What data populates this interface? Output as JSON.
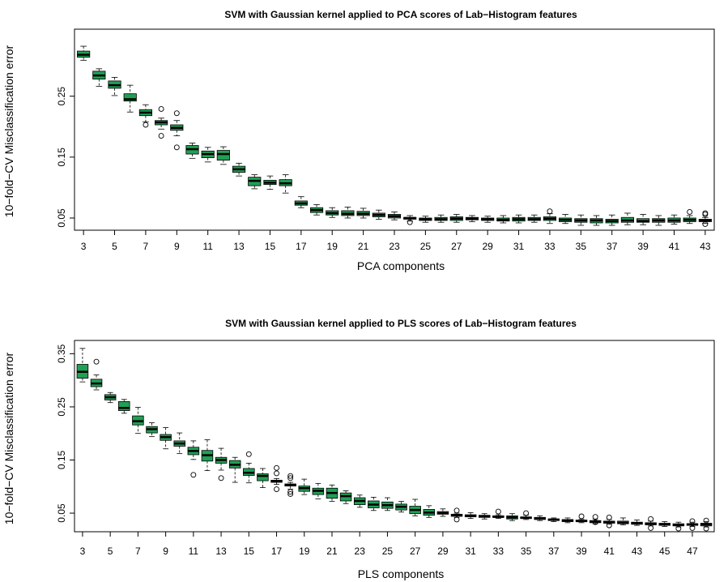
{
  "chart_data": [
    {
      "type": "box",
      "title": "SVM with Gaussian kernel applied to PCA scores of Lab−Histogram features",
      "xlabel": "PCA components",
      "ylabel": "10−fold−CV Misclassification error",
      "x_tick_labels": [
        "3",
        "5",
        "7",
        "9",
        "11",
        "13",
        "15",
        "17",
        "19",
        "21",
        "23",
        "25",
        "27",
        "29",
        "31",
        "33",
        "35",
        "37",
        "39",
        "41",
        "43"
      ],
      "y_tick_labels": [
        "0.05",
        "0.15",
        "0.25"
      ],
      "y_ticks": [
        0.05,
        0.15,
        0.25
      ],
      "ylim": [
        0.03,
        0.36
      ],
      "box_color": "#1fa055",
      "boxes": [
        {
          "x": 3,
          "min": 0.309,
          "q1": 0.314,
          "median": 0.318,
          "q3": 0.324,
          "max": 0.332,
          "outliers": []
        },
        {
          "x": 4,
          "min": 0.266,
          "q1": 0.278,
          "median": 0.284,
          "q3": 0.291,
          "max": 0.295,
          "outliers": []
        },
        {
          "x": 5,
          "min": 0.251,
          "q1": 0.263,
          "median": 0.268,
          "q3": 0.275,
          "max": 0.281,
          "outliers": []
        },
        {
          "x": 6,
          "min": 0.224,
          "q1": 0.242,
          "median": 0.245,
          "q3": 0.254,
          "max": 0.268,
          "outliers": []
        },
        {
          "x": 7,
          "min": 0.208,
          "q1": 0.218,
          "median": 0.223,
          "q3": 0.228,
          "max": 0.236,
          "outliers": [
            0.203
          ]
        },
        {
          "x": 8,
          "min": 0.196,
          "q1": 0.203,
          "median": 0.207,
          "q3": 0.21,
          "max": 0.214,
          "outliers": [
            0.229,
            0.185
          ]
        },
        {
          "x": 9,
          "min": 0.185,
          "q1": 0.194,
          "median": 0.198,
          "q3": 0.203,
          "max": 0.21,
          "outliers": [
            0.222,
            0.166
          ]
        },
        {
          "x": 10,
          "min": 0.148,
          "q1": 0.155,
          "median": 0.163,
          "q3": 0.169,
          "max": 0.173,
          "outliers": []
        },
        {
          "x": 11,
          "min": 0.142,
          "q1": 0.149,
          "median": 0.155,
          "q3": 0.16,
          "max": 0.166,
          "outliers": []
        },
        {
          "x": 12,
          "min": 0.138,
          "q1": 0.145,
          "median": 0.155,
          "q3": 0.161,
          "max": 0.167,
          "outliers": []
        },
        {
          "x": 13,
          "min": 0.119,
          "q1": 0.125,
          "median": 0.13,
          "q3": 0.135,
          "max": 0.14,
          "outliers": []
        },
        {
          "x": 14,
          "min": 0.098,
          "q1": 0.103,
          "median": 0.111,
          "q3": 0.117,
          "max": 0.121,
          "outliers": []
        },
        {
          "x": 15,
          "min": 0.097,
          "q1": 0.105,
          "median": 0.108,
          "q3": 0.112,
          "max": 0.119,
          "outliers": []
        },
        {
          "x": 16,
          "min": 0.091,
          "q1": 0.103,
          "median": 0.107,
          "q3": 0.113,
          "max": 0.121,
          "outliers": []
        },
        {
          "x": 17,
          "min": 0.067,
          "q1": 0.071,
          "median": 0.074,
          "q3": 0.078,
          "max": 0.085,
          "outliers": []
        },
        {
          "x": 18,
          "min": 0.055,
          "q1": 0.059,
          "median": 0.063,
          "q3": 0.067,
          "max": 0.072,
          "outliers": []
        },
        {
          "x": 19,
          "min": 0.051,
          "q1": 0.055,
          "median": 0.058,
          "q3": 0.062,
          "max": 0.067,
          "outliers": []
        },
        {
          "x": 20,
          "min": 0.05,
          "q1": 0.054,
          "median": 0.057,
          "q3": 0.062,
          "max": 0.068,
          "outliers": []
        },
        {
          "x": 21,
          "min": 0.05,
          "q1": 0.054,
          "median": 0.057,
          "q3": 0.061,
          "max": 0.066,
          "outliers": []
        },
        {
          "x": 22,
          "min": 0.048,
          "q1": 0.052,
          "median": 0.055,
          "q3": 0.058,
          "max": 0.063,
          "outliers": []
        },
        {
          "x": 23,
          "min": 0.047,
          "q1": 0.05,
          "median": 0.053,
          "q3": 0.056,
          "max": 0.06,
          "outliers": []
        },
        {
          "x": 24,
          "min": 0.045,
          "q1": 0.048,
          "median": 0.05,
          "q3": 0.051,
          "max": 0.054,
          "outliers": [
            0.043
          ]
        },
        {
          "x": 25,
          "min": 0.043,
          "q1": 0.046,
          "median": 0.048,
          "q3": 0.05,
          "max": 0.053,
          "outliers": []
        },
        {
          "x": 26,
          "min": 0.043,
          "q1": 0.046,
          "median": 0.048,
          "q3": 0.051,
          "max": 0.055,
          "outliers": []
        },
        {
          "x": 27,
          "min": 0.043,
          "q1": 0.046,
          "median": 0.049,
          "q3": 0.052,
          "max": 0.056,
          "outliers": []
        },
        {
          "x": 28,
          "min": 0.044,
          "q1": 0.047,
          "median": 0.049,
          "q3": 0.051,
          "max": 0.054,
          "outliers": []
        },
        {
          "x": 29,
          "min": 0.043,
          "q1": 0.046,
          "median": 0.048,
          "q3": 0.05,
          "max": 0.053,
          "outliers": []
        },
        {
          "x": 30,
          "min": 0.042,
          "q1": 0.045,
          "median": 0.047,
          "q3": 0.05,
          "max": 0.054,
          "outliers": []
        },
        {
          "x": 31,
          "min": 0.042,
          "q1": 0.045,
          "median": 0.048,
          "q3": 0.051,
          "max": 0.055,
          "outliers": []
        },
        {
          "x": 32,
          "min": 0.043,
          "q1": 0.046,
          "median": 0.048,
          "q3": 0.051,
          "max": 0.055,
          "outliers": []
        },
        {
          "x": 33,
          "min": 0.041,
          "q1": 0.046,
          "median": 0.049,
          "q3": 0.052,
          "max": 0.057,
          "outliers": [
            0.061
          ]
        },
        {
          "x": 34,
          "min": 0.041,
          "q1": 0.044,
          "median": 0.047,
          "q3": 0.05,
          "max": 0.056,
          "outliers": []
        },
        {
          "x": 35,
          "min": 0.038,
          "q1": 0.043,
          "median": 0.046,
          "q3": 0.049,
          "max": 0.055,
          "outliers": []
        },
        {
          "x": 36,
          "min": 0.038,
          "q1": 0.042,
          "median": 0.046,
          "q3": 0.049,
          "max": 0.054,
          "outliers": []
        },
        {
          "x": 37,
          "min": 0.038,
          "q1": 0.042,
          "median": 0.045,
          "q3": 0.048,
          "max": 0.055,
          "outliers": []
        },
        {
          "x": 38,
          "min": 0.039,
          "q1": 0.043,
          "median": 0.046,
          "q3": 0.051,
          "max": 0.058,
          "outliers": []
        },
        {
          "x": 39,
          "min": 0.039,
          "q1": 0.043,
          "median": 0.045,
          "q3": 0.049,
          "max": 0.056,
          "outliers": []
        },
        {
          "x": 40,
          "min": 0.038,
          "q1": 0.043,
          "median": 0.046,
          "q3": 0.049,
          "max": 0.054,
          "outliers": []
        },
        {
          "x": 41,
          "min": 0.04,
          "q1": 0.043,
          "median": 0.046,
          "q3": 0.05,
          "max": 0.055,
          "outliers": []
        },
        {
          "x": 42,
          "min": 0.041,
          "q1": 0.044,
          "median": 0.047,
          "q3": 0.05,
          "max": 0.054,
          "outliers": [
            0.06
          ]
        },
        {
          "x": 43,
          "min": 0.041,
          "q1": 0.044,
          "median": 0.046,
          "q3": 0.048,
          "max": 0.051,
          "outliers": [
            0.058,
            0.056,
            0.04
          ]
        }
      ]
    },
    {
      "type": "box",
      "title": "SVM with Gaussian kernel applied to PLS scores of Lab−Histogram features",
      "xlabel": "PLS components",
      "ylabel": "10−fold−CV Misclassification error",
      "x_tick_labels": [
        "3",
        "5",
        "7",
        "9",
        "11",
        "13",
        "15",
        "17",
        "19",
        "21",
        "23",
        "25",
        "27",
        "29",
        "31",
        "33",
        "35",
        "37",
        "39",
        "41",
        "43",
        "45",
        "47"
      ],
      "y_tick_labels": [
        "0.05",
        "0.15",
        "0.25",
        "0.35"
      ],
      "y_ticks": [
        0.05,
        0.15,
        0.25,
        0.35
      ],
      "ylim": [
        0.015,
        0.375
      ],
      "box_color": "#1fa055",
      "boxes": [
        {
          "x": 3,
          "min": 0.297,
          "q1": 0.304,
          "median": 0.316,
          "q3": 0.33,
          "max": 0.36,
          "outliers": []
        },
        {
          "x": 4,
          "min": 0.282,
          "q1": 0.288,
          "median": 0.294,
          "q3": 0.302,
          "max": 0.31,
          "outliers": [
            0.335
          ]
        },
        {
          "x": 5,
          "min": 0.258,
          "q1": 0.263,
          "median": 0.268,
          "q3": 0.273,
          "max": 0.277,
          "outliers": []
        },
        {
          "x": 6,
          "min": 0.238,
          "q1": 0.243,
          "median": 0.248,
          "q3": 0.26,
          "max": 0.264,
          "outliers": []
        },
        {
          "x": 7,
          "min": 0.2,
          "q1": 0.216,
          "median": 0.223,
          "q3": 0.233,
          "max": 0.249,
          "outliers": []
        },
        {
          "x": 8,
          "min": 0.194,
          "q1": 0.201,
          "median": 0.208,
          "q3": 0.213,
          "max": 0.22,
          "outliers": []
        },
        {
          "x": 9,
          "min": 0.171,
          "q1": 0.187,
          "median": 0.193,
          "q3": 0.198,
          "max": 0.211,
          "outliers": []
        },
        {
          "x": 10,
          "min": 0.162,
          "q1": 0.176,
          "median": 0.181,
          "q3": 0.186,
          "max": 0.201,
          "outliers": []
        },
        {
          "x": 11,
          "min": 0.151,
          "q1": 0.16,
          "median": 0.167,
          "q3": 0.174,
          "max": 0.186,
          "outliers": [
            0.122
          ]
        },
        {
          "x": 12,
          "min": 0.13,
          "q1": 0.148,
          "median": 0.159,
          "q3": 0.168,
          "max": 0.188,
          "outliers": []
        },
        {
          "x": 13,
          "min": 0.131,
          "q1": 0.144,
          "median": 0.15,
          "q3": 0.155,
          "max": 0.172,
          "outliers": [
            0.116
          ]
        },
        {
          "x": 14,
          "min": 0.108,
          "q1": 0.135,
          "median": 0.141,
          "q3": 0.149,
          "max": 0.155,
          "outliers": []
        },
        {
          "x": 15,
          "min": 0.107,
          "q1": 0.121,
          "median": 0.126,
          "q3": 0.134,
          "max": 0.144,
          "outliers": [
            0.161
          ]
        },
        {
          "x": 16,
          "min": 0.098,
          "q1": 0.111,
          "median": 0.12,
          "q3": 0.124,
          "max": 0.134,
          "outliers": []
        },
        {
          "x": 17,
          "min": 0.104,
          "q1": 0.108,
          "median": 0.11,
          "q3": 0.112,
          "max": 0.115,
          "outliers": [
            0.135,
            0.125,
            0.095
          ]
        },
        {
          "x": 18,
          "min": 0.095,
          "q1": 0.101,
          "median": 0.103,
          "q3": 0.105,
          "max": 0.108,
          "outliers": [
            0.12,
            0.116,
            0.09,
            0.086
          ]
        },
        {
          "x": 19,
          "min": 0.085,
          "q1": 0.091,
          "median": 0.097,
          "q3": 0.101,
          "max": 0.114,
          "outliers": []
        },
        {
          "x": 20,
          "min": 0.077,
          "q1": 0.085,
          "median": 0.092,
          "q3": 0.097,
          "max": 0.106,
          "outliers": []
        },
        {
          "x": 21,
          "min": 0.072,
          "q1": 0.078,
          "median": 0.088,
          "q3": 0.097,
          "max": 0.103,
          "outliers": []
        },
        {
          "x": 22,
          "min": 0.068,
          "q1": 0.073,
          "median": 0.082,
          "q3": 0.088,
          "max": 0.092,
          "outliers": []
        },
        {
          "x": 23,
          "min": 0.061,
          "q1": 0.066,
          "median": 0.073,
          "q3": 0.079,
          "max": 0.084,
          "outliers": []
        },
        {
          "x": 24,
          "min": 0.055,
          "q1": 0.06,
          "median": 0.066,
          "q3": 0.073,
          "max": 0.08,
          "outliers": []
        },
        {
          "x": 25,
          "min": 0.055,
          "q1": 0.059,
          "median": 0.065,
          "q3": 0.071,
          "max": 0.079,
          "outliers": []
        },
        {
          "x": 26,
          "min": 0.052,
          "q1": 0.056,
          "median": 0.062,
          "q3": 0.067,
          "max": 0.072,
          "outliers": []
        },
        {
          "x": 27,
          "min": 0.045,
          "q1": 0.049,
          "median": 0.056,
          "q3": 0.063,
          "max": 0.076,
          "outliers": []
        },
        {
          "x": 28,
          "min": 0.042,
          "q1": 0.046,
          "median": 0.051,
          "q3": 0.057,
          "max": 0.064,
          "outliers": []
        },
        {
          "x": 29,
          "min": 0.044,
          "q1": 0.048,
          "median": 0.05,
          "q3": 0.053,
          "max": 0.058,
          "outliers": []
        },
        {
          "x": 30,
          "min": 0.042,
          "q1": 0.044,
          "median": 0.046,
          "q3": 0.048,
          "max": 0.05,
          "outliers": [
            0.055,
            0.038
          ]
        },
        {
          "x": 31,
          "min": 0.04,
          "q1": 0.043,
          "median": 0.045,
          "q3": 0.047,
          "max": 0.051,
          "outliers": []
        },
        {
          "x": 32,
          "min": 0.039,
          "q1": 0.042,
          "median": 0.044,
          "q3": 0.046,
          "max": 0.049,
          "outliers": []
        },
        {
          "x": 33,
          "min": 0.04,
          "q1": 0.042,
          "median": 0.043,
          "q3": 0.045,
          "max": 0.047,
          "outliers": [
            0.053
          ]
        },
        {
          "x": 34,
          "min": 0.036,
          "q1": 0.039,
          "median": 0.042,
          "q3": 0.045,
          "max": 0.049,
          "outliers": []
        },
        {
          "x": 35,
          "min": 0.038,
          "q1": 0.04,
          "median": 0.041,
          "q3": 0.043,
          "max": 0.046,
          "outliers": [
            0.05
          ]
        },
        {
          "x": 36,
          "min": 0.036,
          "q1": 0.038,
          "median": 0.04,
          "q3": 0.042,
          "max": 0.045,
          "outliers": []
        },
        {
          "x": 37,
          "min": 0.034,
          "q1": 0.036,
          "median": 0.038,
          "q3": 0.039,
          "max": 0.041,
          "outliers": []
        },
        {
          "x": 38,
          "min": 0.032,
          "q1": 0.034,
          "median": 0.036,
          "q3": 0.038,
          "max": 0.041,
          "outliers": []
        },
        {
          "x": 39,
          "min": 0.032,
          "q1": 0.034,
          "median": 0.035,
          "q3": 0.037,
          "max": 0.039,
          "outliers": [
            0.044
          ]
        },
        {
          "x": 40,
          "min": 0.03,
          "q1": 0.032,
          "median": 0.034,
          "q3": 0.036,
          "max": 0.039,
          "outliers": [
            0.043,
            0.033
          ]
        },
        {
          "x": 41,
          "min": 0.029,
          "q1": 0.031,
          "median": 0.033,
          "q3": 0.035,
          "max": 0.038,
          "outliers": [
            0.042,
            0.027
          ]
        },
        {
          "x": 42,
          "min": 0.028,
          "q1": 0.03,
          "median": 0.032,
          "q3": 0.035,
          "max": 0.041,
          "outliers": []
        },
        {
          "x": 43,
          "min": 0.027,
          "q1": 0.029,
          "median": 0.031,
          "q3": 0.033,
          "max": 0.037,
          "outliers": []
        },
        {
          "x": 44,
          "min": 0.026,
          "q1": 0.028,
          "median": 0.03,
          "q3": 0.032,
          "max": 0.035,
          "outliers": [
            0.039,
            0.022
          ]
        },
        {
          "x": 45,
          "min": 0.025,
          "q1": 0.027,
          "median": 0.029,
          "q3": 0.031,
          "max": 0.034,
          "outliers": []
        },
        {
          "x": 46,
          "min": 0.024,
          "q1": 0.026,
          "median": 0.028,
          "q3": 0.03,
          "max": 0.033,
          "outliers": [
            0.021
          ]
        },
        {
          "x": 47,
          "min": 0.025,
          "q1": 0.027,
          "median": 0.029,
          "q3": 0.03,
          "max": 0.033,
          "outliers": [
            0.035,
            0.022
          ]
        },
        {
          "x": 48,
          "min": 0.024,
          "q1": 0.026,
          "median": 0.029,
          "q3": 0.031,
          "max": 0.034,
          "outliers": [
            0.036,
            0.021
          ]
        }
      ]
    }
  ]
}
